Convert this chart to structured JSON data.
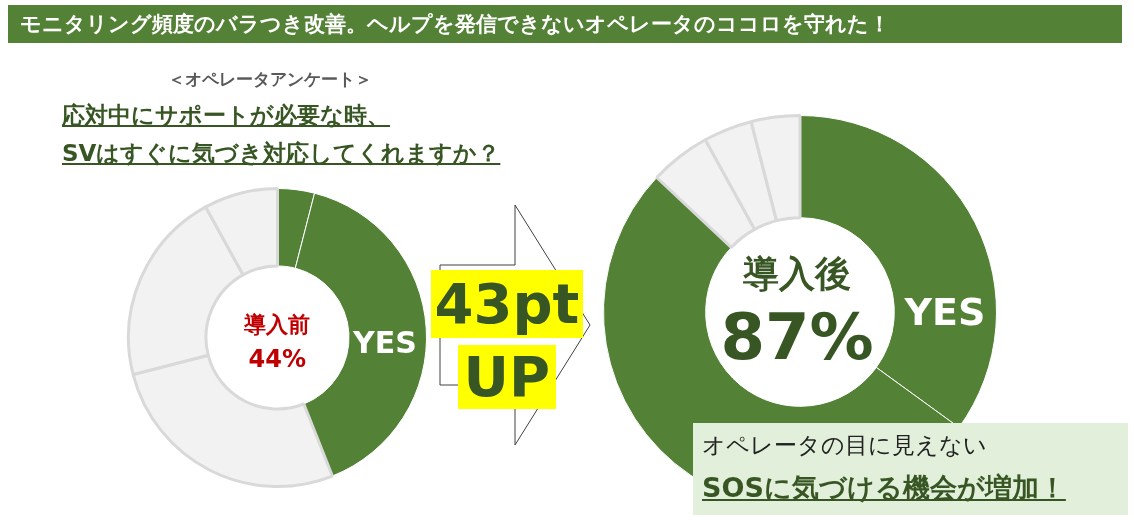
{
  "chart_data": [
    {
      "type": "donut",
      "title": "モニタリング頻度のバラつき改善。ヘルプを発信できないオペレータのココロを守れた！",
      "subtitle": "＜オペレータアンケート＞",
      "categories": [
        null,
        null,
        null,
        null,
        null
      ],
      "values": [
        4,
        40,
        27,
        21,
        8
      ],
      "colors": [
        "#538135",
        "#538135",
        "#f2f2f2",
        "#f2f2f2",
        "#f2f2f2"
      ],
      "annotations": [
        "応対中にサポートが必要な時、",
        "SVはすぐに気づき対応してくれますか？",
        "導入前",
        "44%",
        "YES",
        "43pt",
        "UP"
      ]
    },
    {
      "type": "donut",
      "categories": [
        null,
        null,
        null,
        null,
        null
      ],
      "values": [
        35,
        52,
        5,
        4,
        4
      ],
      "colors": [
        "#538135",
        "#538135",
        "#f2f2f2",
        "#f2f2f2",
        "#f2f2f2"
      ],
      "annotations": [
        "導入後",
        "87%",
        "YES",
        "オペレータの目に見えない",
        "SOSに気づける機会が増加！"
      ]
    }
  ]
}
